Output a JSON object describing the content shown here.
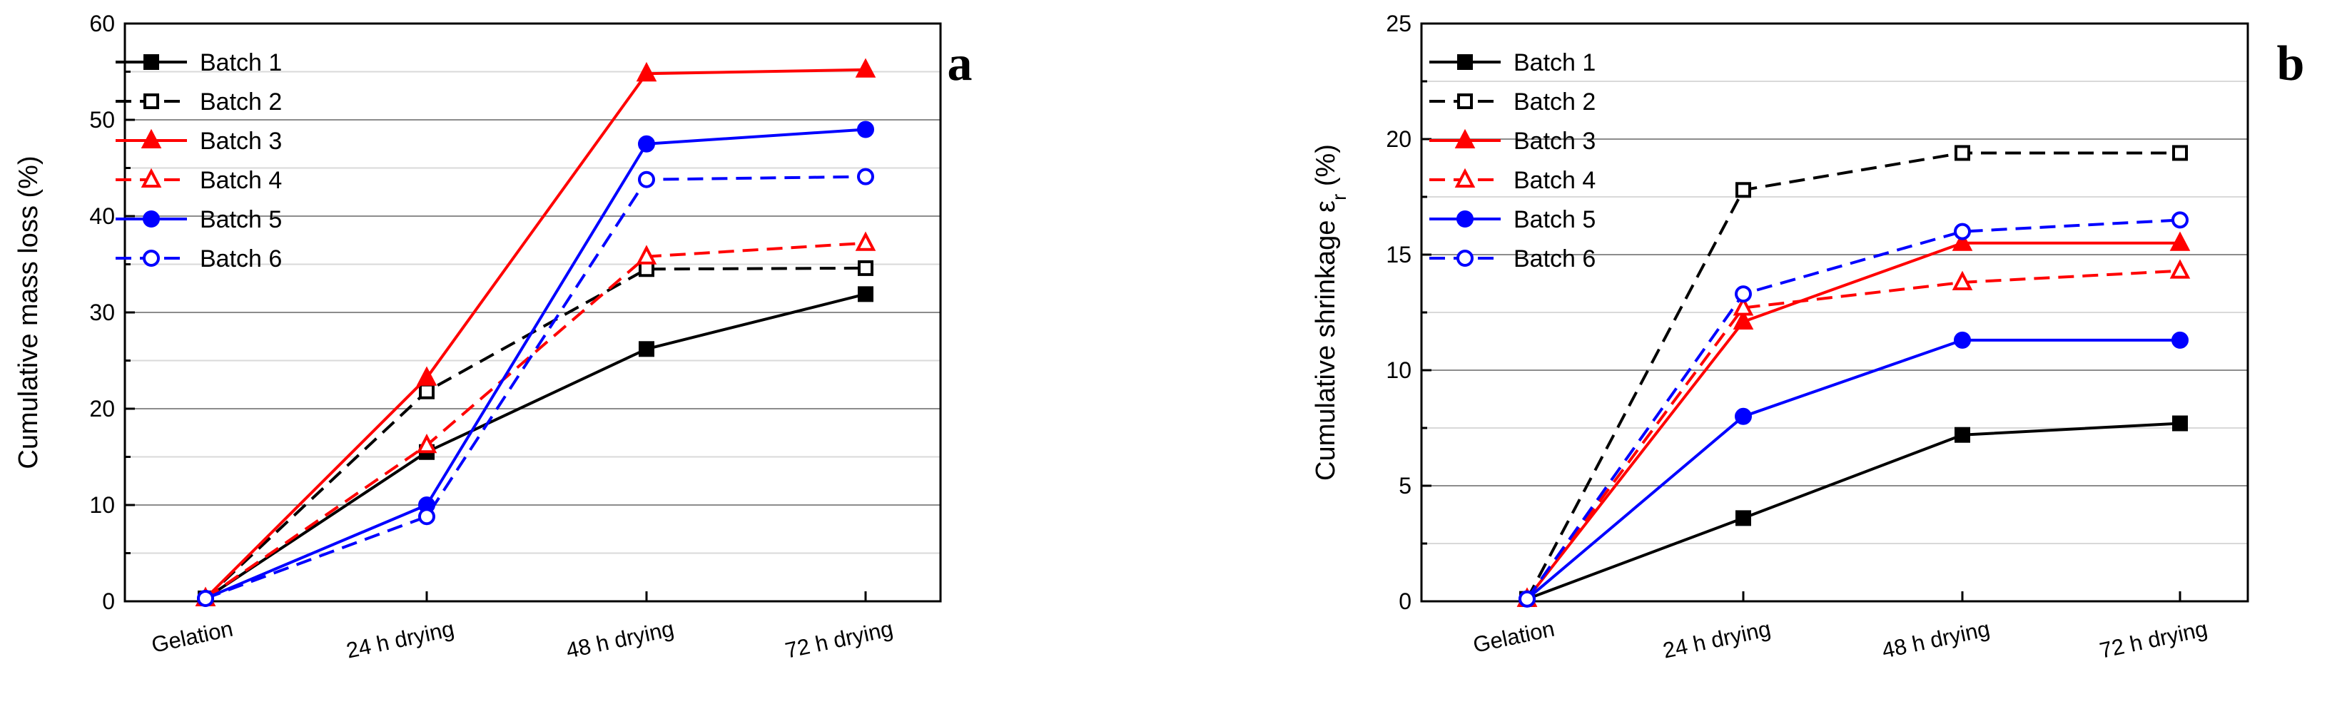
{
  "chart_data": [
    {
      "type": "line",
      "panel_label": "a",
      "categories": [
        "Gelation",
        "24 h drying",
        "48 h drying",
        "72 h drying"
      ],
      "ylabel": "Cumulative mass loss (%)",
      "xlabel": "",
      "ylim": [
        0,
        60
      ],
      "yticks": [
        "0",
        "10",
        "20",
        "30",
        "40",
        "50",
        "60"
      ],
      "grid": true,
      "legend_position": "top-left",
      "series": [
        {
          "name": "Batch 1",
          "color": "#000000",
          "dash": "solid",
          "marker": "square",
          "filled": true,
          "values": [
            0.3,
            15.5,
            26.2,
            31.9
          ]
        },
        {
          "name": "Batch 2",
          "color": "#000000",
          "dash": "dashed",
          "marker": "square",
          "filled": false,
          "values": [
            0.3,
            21.8,
            34.5,
            34.6
          ]
        },
        {
          "name": "Batch 3",
          "color": "#ff0000",
          "dash": "solid",
          "marker": "triangle",
          "filled": true,
          "values": [
            0.3,
            23.2,
            54.8,
            55.2
          ]
        },
        {
          "name": "Batch 4",
          "color": "#ff0000",
          "dash": "dashed",
          "marker": "triangle",
          "filled": false,
          "values": [
            0.3,
            16.2,
            35.8,
            37.2
          ]
        },
        {
          "name": "Batch 5",
          "color": "#0000ff",
          "dash": "solid",
          "marker": "circle",
          "filled": true,
          "values": [
            0.3,
            10.0,
            47.5,
            49.0
          ]
        },
        {
          "name": "Batch 6",
          "color": "#0000ff",
          "dash": "dashed",
          "marker": "circle",
          "filled": false,
          "values": [
            0.3,
            8.8,
            43.8,
            44.1
          ]
        }
      ]
    },
    {
      "type": "line",
      "panel_label": "b",
      "categories": [
        "Gelation",
        "24 h drying",
        "48 h drying",
        "72 h drying"
      ],
      "ylabel": "Cumulative shrinkage ε",
      "ylabel_subscript": "r",
      "ylabel_suffix": " (%)",
      "xlabel": "",
      "ylim": [
        0,
        25
      ],
      "yticks": [
        "0",
        "5",
        "10",
        "15",
        "20",
        "25"
      ],
      "grid": true,
      "legend_position": "top-left",
      "series": [
        {
          "name": "Batch 1",
          "color": "#000000",
          "dash": "solid",
          "marker": "square",
          "filled": true,
          "values": [
            0.1,
            3.6,
            7.2,
            7.7
          ]
        },
        {
          "name": "Batch 2",
          "color": "#000000",
          "dash": "dashed",
          "marker": "square",
          "filled": false,
          "values": [
            0.1,
            17.8,
            19.4,
            19.4
          ]
        },
        {
          "name": "Batch 3",
          "color": "#ff0000",
          "dash": "solid",
          "marker": "triangle",
          "filled": true,
          "values": [
            0.1,
            12.1,
            15.5,
            15.5
          ]
        },
        {
          "name": "Batch 4",
          "color": "#ff0000",
          "dash": "dashed",
          "marker": "triangle",
          "filled": false,
          "values": [
            0.1,
            12.7,
            13.8,
            14.3
          ]
        },
        {
          "name": "Batch 5",
          "color": "#0000ff",
          "dash": "solid",
          "marker": "circle",
          "filled": true,
          "values": [
            0.1,
            8.0,
            11.3,
            11.3
          ]
        },
        {
          "name": "Batch 6",
          "color": "#0000ff",
          "dash": "dashed",
          "marker": "circle",
          "filled": false,
          "values": [
            0.1,
            13.3,
            16.0,
            16.5
          ]
        }
      ]
    }
  ]
}
